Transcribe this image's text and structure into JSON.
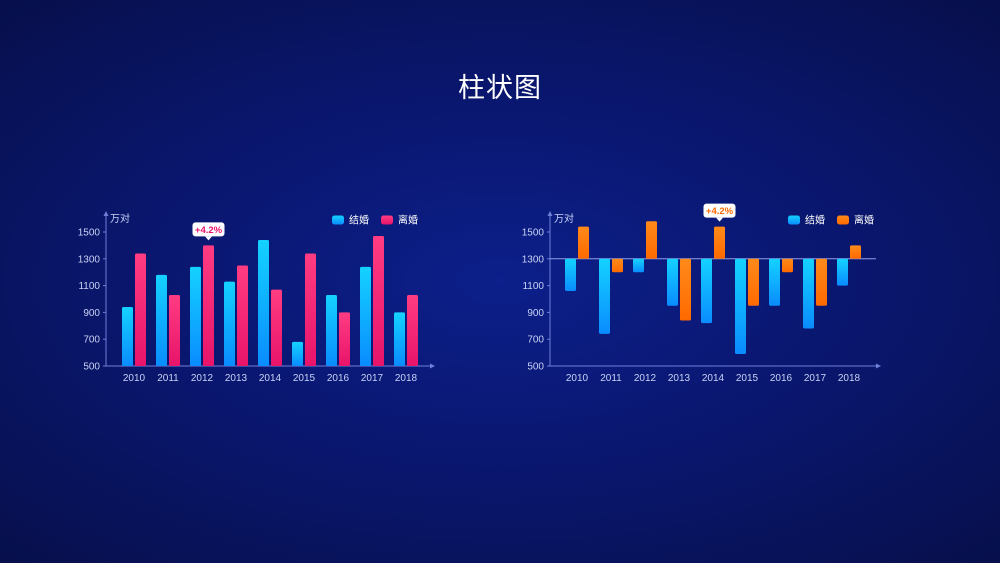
{
  "page": {
    "title": "柱状图"
  },
  "colors": {
    "cyan_top": "#14d2ff",
    "cyan_bottom": "#0a8cff",
    "pink_top": "#ff3c82",
    "pink_bottom": "#e8146a",
    "orange_top": "#ff8a1a",
    "orange_bottom": "#ff6a00",
    "axis": "#6f7fd9"
  },
  "chart_data": [
    {
      "type": "bar",
      "unit_label": "万对",
      "categories": [
        "2010",
        "2011",
        "2012",
        "2013",
        "2014",
        "2015",
        "2016",
        "2017",
        "2018"
      ],
      "ylim": [
        500,
        1500
      ],
      "yticks": [
        500,
        700,
        900,
        1100,
        1300,
        1500
      ],
      "baseline": 500,
      "series": [
        {
          "name": "结婚",
          "color": "cyan",
          "values": [
            940,
            1180,
            1240,
            1130,
            1440,
            680,
            1030,
            1240,
            900
          ]
        },
        {
          "name": "离婚",
          "color": "pink",
          "values": [
            1340,
            1030,
            1400,
            1250,
            1070,
            1340,
            900,
            1470,
            1030
          ]
        }
      ],
      "annotation": {
        "text": "+4.2%",
        "series": 1,
        "index": 2
      },
      "legend": "top-right"
    },
    {
      "type": "bar",
      "unit_label": "万对",
      "categories": [
        "2010",
        "2011",
        "2012",
        "2013",
        "2014",
        "2015",
        "2016",
        "2017",
        "2018"
      ],
      "ylim": [
        500,
        1500
      ],
      "yticks": [
        500,
        700,
        900,
        1100,
        1300,
        1500
      ],
      "baseline": 1300,
      "series": [
        {
          "name": "结婚",
          "color": "cyan",
          "values": [
            1060,
            740,
            1200,
            950,
            820,
            590,
            950,
            780,
            1100
          ]
        },
        {
          "name": "离婚",
          "color": "orange",
          "values": [
            1540,
            1200,
            1580,
            840,
            1540,
            950,
            1200,
            950,
            1400
          ]
        }
      ],
      "annotation": {
        "text": "+4.2%",
        "series": 1,
        "index": 4
      },
      "legend": "top-right"
    }
  ]
}
